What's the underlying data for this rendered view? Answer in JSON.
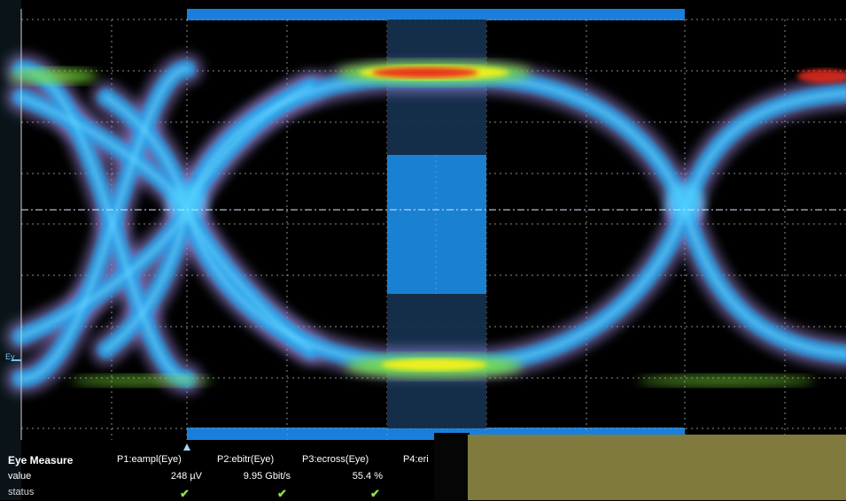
{
  "screen": {
    "eye_label": "Ey",
    "colors": {
      "background": "#000000",
      "grid": "#9a9a9a",
      "mask_top": "#1878d6",
      "mask_center": "#1a7ed0",
      "trace_blue": "#2aa0e8",
      "trace_violet": "#9a86d8",
      "trace_green": "#7ee03a",
      "trace_yellow": "#f4f01e",
      "trace_red": "#e82a1a",
      "olive_panel": "#807a3e"
    }
  },
  "measure": {
    "title": "Eye Measure",
    "row_labels": [
      "value",
      "status"
    ],
    "columns": [
      {
        "header": "P1:eampl(Eye)",
        "value": "248 µV",
        "status": "✔"
      },
      {
        "header": "P2:ebitr(Eye)",
        "value": "9.95 Gbit/s",
        "status": "✔"
      },
      {
        "header": "P3:ecross(Eye)",
        "value": "55.4 %",
        "status": "✔"
      },
      {
        "header": "P4:eri",
        "value": "",
        "status": ""
      }
    ]
  }
}
